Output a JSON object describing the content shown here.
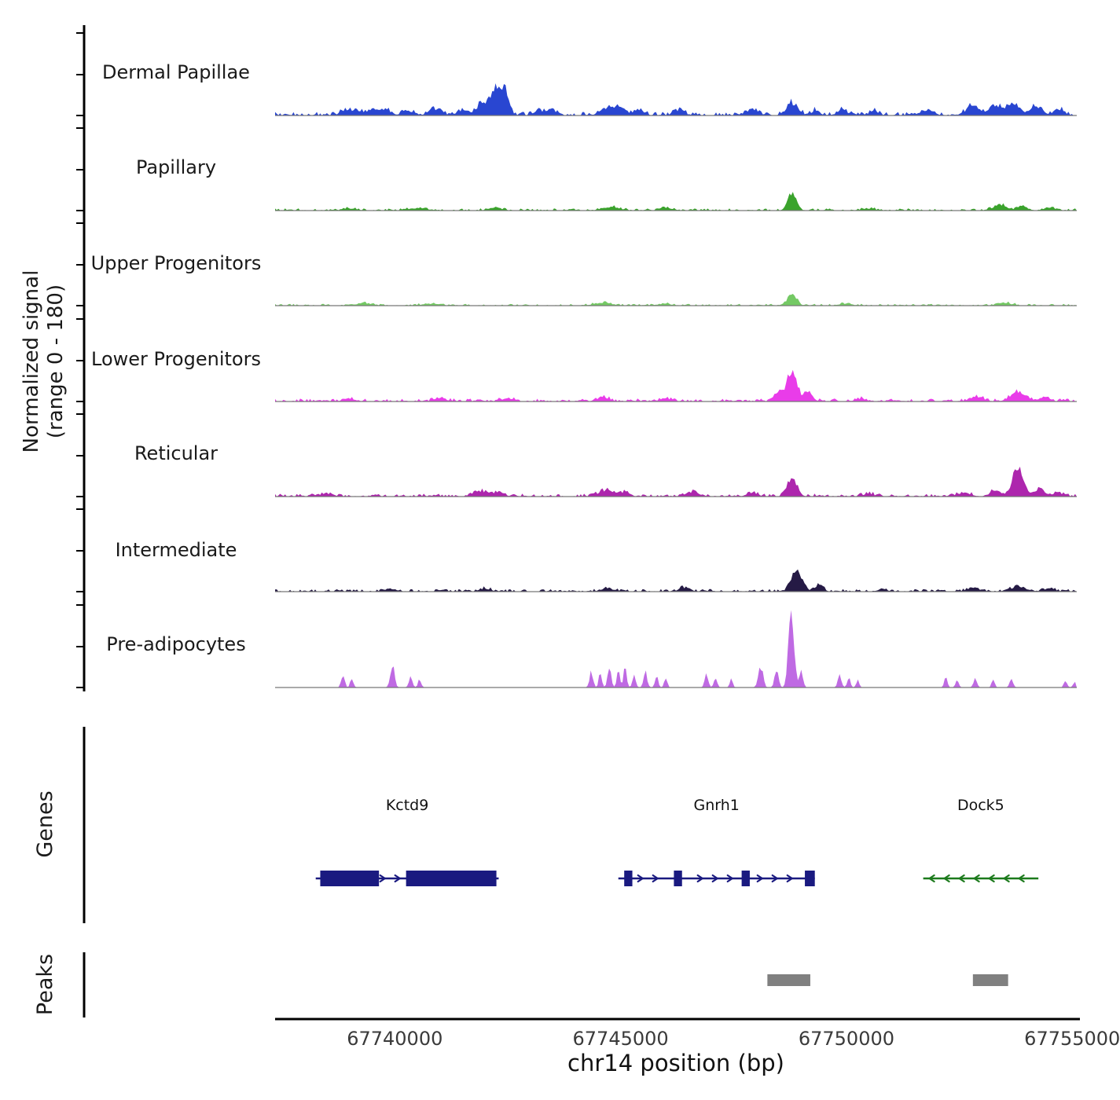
{
  "figure": {
    "ylabel_line1": "Normalized signal",
    "ylabel_line2": "(range 0 - 180)",
    "xlabel": "chr14 position (bp)",
    "genes_section_label": "Genes",
    "peaks_section_label": "Peaks"
  },
  "chart_data": {
    "type": "area",
    "title": "",
    "xlabel": "chr14 position (bp)",
    "ylabel": "Normalized signal (range 0 - 180)",
    "x_range": [
      67737350,
      67755100
    ],
    "y_range_per_track": [
      0,
      180
    ],
    "x_ticks": [
      {
        "value": 67740000,
        "label": "67740000"
      },
      {
        "value": 67745000,
        "label": "67745000"
      },
      {
        "value": 67750000,
        "label": "67750000"
      },
      {
        "value": 67755000,
        "label": "67755000"
      }
    ],
    "tracks": [
      {
        "label": "Dermal Papillae",
        "color": "#2946d1",
        "noise": 5,
        "bumps": [
          [
            67738900,
            250,
            10
          ],
          [
            67739150,
            200,
            12
          ],
          [
            67739500,
            300,
            14
          ],
          [
            67739800,
            250,
            12
          ],
          [
            67740300,
            300,
            10
          ],
          [
            67740900,
            300,
            12
          ],
          [
            67741500,
            250,
            10
          ],
          [
            67741900,
            250,
            22
          ],
          [
            67742250,
            350,
            58
          ],
          [
            67742450,
            200,
            30
          ],
          [
            67743200,
            250,
            12
          ],
          [
            67743500,
            200,
            10
          ],
          [
            67744700,
            350,
            16
          ],
          [
            67745000,
            250,
            14
          ],
          [
            67745400,
            250,
            12
          ],
          [
            67746300,
            250,
            10
          ],
          [
            67747900,
            300,
            12
          ],
          [
            67748800,
            300,
            26
          ],
          [
            67749300,
            200,
            10
          ],
          [
            67749900,
            250,
            12
          ],
          [
            67750600,
            200,
            10
          ],
          [
            67751800,
            300,
            12
          ],
          [
            67752800,
            350,
            20
          ],
          [
            67753300,
            300,
            22
          ],
          [
            67753700,
            300,
            26
          ],
          [
            67754200,
            300,
            20
          ],
          [
            67754700,
            250,
            14
          ]
        ]
      },
      {
        "label": "Papillary",
        "color": "#3aa32c",
        "noise": 3,
        "bumps": [
          [
            67739000,
            300,
            4
          ],
          [
            67740500,
            400,
            5
          ],
          [
            67742200,
            300,
            6
          ],
          [
            67744800,
            400,
            7
          ],
          [
            67746000,
            300,
            5
          ],
          [
            67748800,
            220,
            38
          ],
          [
            67750500,
            300,
            4
          ],
          [
            67753400,
            350,
            12
          ],
          [
            67753900,
            250,
            9
          ],
          [
            67754500,
            250,
            6
          ]
        ]
      },
      {
        "label": "Upper Progenitors",
        "color": "#74c964",
        "noise": 2.5,
        "bumps": [
          [
            67739300,
            400,
            5
          ],
          [
            67740800,
            400,
            4
          ],
          [
            67744600,
            400,
            6
          ],
          [
            67746000,
            300,
            4
          ],
          [
            67748800,
            220,
            27
          ],
          [
            67750000,
            300,
            4
          ],
          [
            67753500,
            350,
            6
          ]
        ]
      },
      {
        "label": "Lower Progenitors",
        "color": "#e93ce9",
        "noise": 4,
        "bumps": [
          [
            67739000,
            300,
            6
          ],
          [
            67741000,
            300,
            7
          ],
          [
            67742500,
            300,
            6
          ],
          [
            67744600,
            300,
            8
          ],
          [
            67746000,
            300,
            6
          ],
          [
            67748500,
            200,
            22
          ],
          [
            67748800,
            260,
            66
          ],
          [
            67749150,
            200,
            20
          ],
          [
            67750300,
            250,
            6
          ],
          [
            67752900,
            300,
            10
          ],
          [
            67753800,
            400,
            19
          ],
          [
            67754400,
            250,
            10
          ]
        ]
      },
      {
        "label": "Reticular",
        "color": "#ad26ad",
        "noise": 4,
        "bumps": [
          [
            67738500,
            250,
            6
          ],
          [
            67741900,
            350,
            12
          ],
          [
            67742300,
            250,
            10
          ],
          [
            67744700,
            400,
            13
          ],
          [
            67745100,
            250,
            8
          ],
          [
            67746600,
            300,
            10
          ],
          [
            67747900,
            250,
            8
          ],
          [
            67748800,
            240,
            44
          ],
          [
            67750500,
            250,
            6
          ],
          [
            67752600,
            300,
            8
          ],
          [
            67753300,
            250,
            14
          ],
          [
            67753800,
            280,
            62
          ],
          [
            67754300,
            250,
            16
          ],
          [
            67754700,
            200,
            8
          ]
        ]
      },
      {
        "label": "Intermediate",
        "color": "#251a45",
        "noise": 3.5,
        "bumps": [
          [
            67739900,
            300,
            6
          ],
          [
            67742000,
            300,
            6
          ],
          [
            67744700,
            300,
            7
          ],
          [
            67746400,
            300,
            7
          ],
          [
            67748900,
            280,
            46
          ],
          [
            67749400,
            200,
            14
          ],
          [
            67750800,
            250,
            5
          ],
          [
            67752800,
            300,
            8
          ],
          [
            67753800,
            400,
            11
          ],
          [
            67754500,
            250,
            6
          ]
        ]
      },
      {
        "label": "Pre-adipocytes",
        "color": "#bf6ae3",
        "noise": 0.4,
        "bumps": [
          [
            67738850,
            90,
            28
          ],
          [
            67739050,
            80,
            20
          ],
          [
            67739950,
            110,
            45
          ],
          [
            67740350,
            90,
            22
          ],
          [
            67740550,
            80,
            18
          ],
          [
            67744350,
            90,
            35
          ],
          [
            67744550,
            80,
            30
          ],
          [
            67744750,
            90,
            45
          ],
          [
            67744950,
            80,
            38
          ],
          [
            67745100,
            80,
            42
          ],
          [
            67745300,
            80,
            30
          ],
          [
            67745550,
            90,
            35
          ],
          [
            67745800,
            80,
            25
          ],
          [
            67746000,
            80,
            20
          ],
          [
            67746900,
            90,
            28
          ],
          [
            67747100,
            80,
            22
          ],
          [
            67747450,
            80,
            18
          ],
          [
            67748100,
            120,
            48
          ],
          [
            67748450,
            100,
            40
          ],
          [
            67748780,
            140,
            170
          ],
          [
            67749000,
            90,
            35
          ],
          [
            67749850,
            90,
            28
          ],
          [
            67750050,
            80,
            22
          ],
          [
            67750250,
            80,
            15
          ],
          [
            67752200,
            80,
            20
          ],
          [
            67752450,
            80,
            15
          ],
          [
            67752850,
            90,
            18
          ],
          [
            67753250,
            80,
            15
          ],
          [
            67753650,
            90,
            18
          ],
          [
            67754850,
            80,
            15
          ],
          [
            67755050,
            80,
            12
          ]
        ]
      }
    ],
    "genes": [
      {
        "name": "Kctd9",
        "color": "#1a1a80",
        "strand": "+",
        "start": 67738250,
        "end": 67742300,
        "exons": [
          [
            67738350,
            67739650
          ],
          [
            67740250,
            67742250
          ]
        ]
      },
      {
        "name": "Gnrh1",
        "color": "#1a1a80",
        "strand": "+",
        "start": 67744950,
        "end": 67749300,
        "exons": [
          [
            67745080,
            67745260
          ],
          [
            67746180,
            67746360
          ],
          [
            67747680,
            67747860
          ],
          [
            67749080,
            67749300
          ]
        ]
      },
      {
        "name": "Dock5",
        "color": "#1c7a1c",
        "strand": "-",
        "start": 67751700,
        "end": 67754250,
        "exons": []
      }
    ],
    "peaks": [
      {
        "start": 67748250,
        "end": 67749200
      },
      {
        "start": 67752800,
        "end": 67753580
      }
    ]
  }
}
